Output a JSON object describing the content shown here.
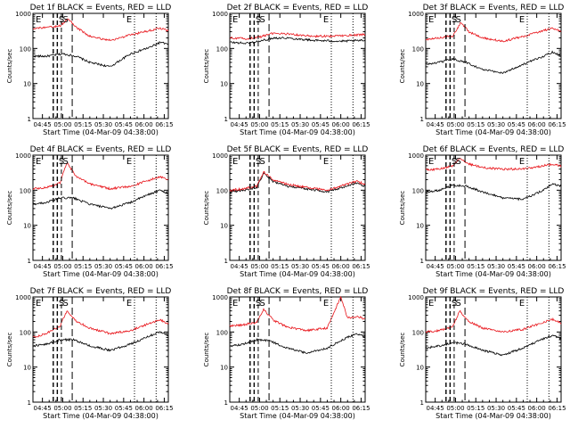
{
  "figure": {
    "x_axis_label": "Start Time (04-Mar-09 04:38:00)",
    "y_axis_label": "Counts/sec",
    "x_tick_labels": [
      "04:45",
      "05:00",
      "05:15",
      "05:30",
      "05:45",
      "06:00",
      "06:15"
    ],
    "y_tick_labels": [
      "1",
      "10",
      "100",
      "1000"
    ],
    "marker_labels": [
      "E",
      "S",
      "S",
      "E"
    ],
    "colors": {
      "events": "#000000",
      "lld": "#e8141a",
      "axes": "#000000"
    }
  },
  "chart_data": [
    {
      "type": "line",
      "title": "Det 1f BLACK = Events, RED = LLD",
      "xlabel": "Start Time (04-Mar-09 04:38:00)",
      "ylabel": "Counts/sec",
      "xlim": [
        "04:38",
        "06:18"
      ],
      "ylim": [
        1,
        1000
      ],
      "yscale": "log",
      "series": [
        {
          "name": "BLACK = Events",
          "points": [
            [
              "04:38",
              60
            ],
            [
              "04:48",
              60
            ],
            [
              "05:00",
              70
            ],
            [
              "05:10",
              60
            ],
            [
              "05:20",
              40
            ],
            [
              "05:35",
              30
            ],
            [
              "05:50",
              70
            ],
            [
              "06:05",
              110
            ],
            [
              "06:12",
              150
            ],
            [
              "06:18",
              130
            ]
          ]
        },
        {
          "name": "RED = LLD",
          "points": [
            [
              "04:38",
              380
            ],
            [
              "04:48",
              390
            ],
            [
              "04:58",
              440
            ],
            [
              "05:04",
              700
            ],
            [
              "05:10",
              400
            ],
            [
              "05:20",
              220
            ],
            [
              "05:35",
              170
            ],
            [
              "05:50",
              240
            ],
            [
              "06:05",
              330
            ],
            [
              "06:12",
              380
            ],
            [
              "06:18",
              320
            ]
          ]
        }
      ]
    },
    {
      "type": "line",
      "title": "Det 2f BLACK = Events, RED = LLD",
      "xlabel": "Start Time (04-Mar-09 04:38:00)",
      "ylabel": "Counts/sec",
      "xlim": [
        "04:38",
        "06:18"
      ],
      "ylim": [
        1,
        1000
      ],
      "yscale": "log",
      "series": [
        {
          "name": "BLACK = Events",
          "points": [
            [
              "04:38",
              150
            ],
            [
              "04:50",
              140
            ],
            [
              "05:00",
              160
            ],
            [
              "05:10",
              200
            ],
            [
              "05:20",
              200
            ],
            [
              "05:40",
              170
            ],
            [
              "06:00",
              160
            ],
            [
              "06:18",
              170
            ]
          ]
        },
        {
          "name": "RED = LLD",
          "points": [
            [
              "04:38",
              200
            ],
            [
              "04:50",
              190
            ],
            [
              "05:00",
              210
            ],
            [
              "05:10",
              270
            ],
            [
              "05:20",
              260
            ],
            [
              "05:40",
              220
            ],
            [
              "06:00",
              230
            ],
            [
              "06:18",
              250
            ]
          ]
        }
      ]
    },
    {
      "type": "line",
      "title": "Det 3f BLACK = Events, RED = LLD",
      "xlabel": "Start Time (04-Mar-09 04:38:00)",
      "ylabel": "Counts/sec",
      "xlim": [
        "04:38",
        "06:18"
      ],
      "ylim": [
        1,
        1000
      ],
      "yscale": "log",
      "series": [
        {
          "name": "BLACK = Events",
          "points": [
            [
              "04:38",
              35
            ],
            [
              "04:48",
              40
            ],
            [
              "04:58",
              50
            ],
            [
              "05:08",
              40
            ],
            [
              "05:20",
              25
            ],
            [
              "05:35",
              20
            ],
            [
              "05:50",
              35
            ],
            [
              "06:05",
              60
            ],
            [
              "06:12",
              80
            ],
            [
              "06:18",
              60
            ]
          ]
        },
        {
          "name": "RED = LLD",
          "points": [
            [
              "04:38",
              180
            ],
            [
              "04:48",
              200
            ],
            [
              "04:58",
              230
            ],
            [
              "05:04",
              550
            ],
            [
              "05:10",
              300
            ],
            [
              "05:20",
              200
            ],
            [
              "05:35",
              160
            ],
            [
              "05:50",
              220
            ],
            [
              "06:05",
              320
            ],
            [
              "06:12",
              380
            ],
            [
              "06:18",
              300
            ]
          ]
        }
      ]
    },
    {
      "type": "line",
      "title": "Det 4f BLACK = Events, RED = LLD",
      "xlabel": "Start Time (04-Mar-09 04:38:00)",
      "ylabel": "Counts/sec",
      "xlim": [
        "04:38",
        "06:18"
      ],
      "ylim": [
        1,
        1000
      ],
      "yscale": "log",
      "series": [
        {
          "name": "BLACK = Events",
          "points": [
            [
              "04:38",
              40
            ],
            [
              "04:48",
              45
            ],
            [
              "04:58",
              60
            ],
            [
              "05:08",
              60
            ],
            [
              "05:20",
              40
            ],
            [
              "05:35",
              30
            ],
            [
              "05:50",
              45
            ],
            [
              "06:05",
              80
            ],
            [
              "06:12",
              100
            ],
            [
              "06:18",
              80
            ]
          ]
        },
        {
          "name": "RED = LLD",
          "points": [
            [
              "04:38",
              110
            ],
            [
              "04:48",
              120
            ],
            [
              "04:58",
              160
            ],
            [
              "05:03",
              600
            ],
            [
              "05:10",
              250
            ],
            [
              "05:20",
              150
            ],
            [
              "05:35",
              110
            ],
            [
              "05:50",
              130
            ],
            [
              "06:05",
              200
            ],
            [
              "06:12",
              240
            ],
            [
              "06:18",
              200
            ]
          ]
        }
      ]
    },
    {
      "type": "line",
      "title": "Det 5f BLACK = Events, RED = LLD",
      "xlabel": "Start Time (04-Mar-09 04:38:00)",
      "ylabel": "Counts/sec",
      "xlim": [
        "04:38",
        "06:18"
      ],
      "ylim": [
        1,
        1000
      ],
      "yscale": "log",
      "series": [
        {
          "name": "BLACK = Events",
          "points": [
            [
              "04:38",
              90
            ],
            [
              "04:48",
              100
            ],
            [
              "04:58",
              120
            ],
            [
              "05:03",
              300
            ],
            [
              "05:10",
              180
            ],
            [
              "05:20",
              130
            ],
            [
              "05:35",
              110
            ],
            [
              "05:50",
              90
            ],
            [
              "06:05",
              130
            ],
            [
              "06:12",
              160
            ],
            [
              "06:18",
              130
            ]
          ]
        },
        {
          "name": "RED = LLD",
          "points": [
            [
              "04:38",
              100
            ],
            [
              "04:48",
              110
            ],
            [
              "04:58",
              130
            ],
            [
              "05:03",
              330
            ],
            [
              "05:10",
              200
            ],
            [
              "05:20",
              150
            ],
            [
              "05:35",
              120
            ],
            [
              "05:50",
              100
            ],
            [
              "06:05",
              150
            ],
            [
              "06:12",
              180
            ],
            [
              "06:18",
              150
            ]
          ]
        }
      ]
    },
    {
      "type": "line",
      "title": "Det 6f BLACK = Events, RED = LLD",
      "xlabel": "Start Time (04-Mar-09 04:38:00)",
      "ylabel": "Counts/sec",
      "xlim": [
        "04:38",
        "06:18"
      ],
      "ylim": [
        1,
        1000
      ],
      "yscale": "log",
      "series": [
        {
          "name": "BLACK = Events",
          "points": [
            [
              "04:38",
              90
            ],
            [
              "04:48",
              100
            ],
            [
              "04:58",
              140
            ],
            [
              "05:08",
              130
            ],
            [
              "05:20",
              90
            ],
            [
              "05:35",
              60
            ],
            [
              "05:50",
              55
            ],
            [
              "06:05",
              100
            ],
            [
              "06:12",
              150
            ],
            [
              "06:18",
              130
            ]
          ]
        },
        {
          "name": "RED = LLD",
          "points": [
            [
              "04:38",
              380
            ],
            [
              "04:48",
              400
            ],
            [
              "04:58",
              500
            ],
            [
              "05:03",
              800
            ],
            [
              "05:10",
              560
            ],
            [
              "05:20",
              440
            ],
            [
              "05:35",
              400
            ],
            [
              "05:50",
              400
            ],
            [
              "06:05",
              500
            ],
            [
              "06:12",
              560
            ],
            [
              "06:18",
              480
            ]
          ]
        }
      ]
    },
    {
      "type": "line",
      "title": "Det 7f BLACK = Events, RED = LLD",
      "xlabel": "Start Time (04-Mar-09 04:38:00)",
      "ylabel": "Counts/sec",
      "xlim": [
        "04:38",
        "06:18"
      ],
      "ylim": [
        1,
        1000
      ],
      "yscale": "log",
      "series": [
        {
          "name": "BLACK = Events",
          "points": [
            [
              "04:38",
              40
            ],
            [
              "04:48",
              45
            ],
            [
              "04:58",
              60
            ],
            [
              "05:08",
              60
            ],
            [
              "05:20",
              40
            ],
            [
              "05:35",
              30
            ],
            [
              "05:50",
              45
            ],
            [
              "06:05",
              80
            ],
            [
              "06:12",
              100
            ],
            [
              "06:18",
              80
            ]
          ]
        },
        {
          "name": "RED = LLD",
          "points": [
            [
              "04:38",
              70
            ],
            [
              "04:48",
              90
            ],
            [
              "04:58",
              150
            ],
            [
              "05:03",
              400
            ],
            [
              "05:10",
              200
            ],
            [
              "05:20",
              130
            ],
            [
              "05:35",
              90
            ],
            [
              "05:50",
              110
            ],
            [
              "06:05",
              180
            ],
            [
              "06:12",
              220
            ],
            [
              "06:18",
              170
            ]
          ]
        }
      ]
    },
    {
      "type": "line",
      "title": "Det 8f BLACK = Events, RED = LLD",
      "xlabel": "Start Time (04-Mar-09 04:38:00)",
      "ylabel": "Counts/sec",
      "xlim": [
        "04:38",
        "06:18"
      ],
      "ylim": [
        1,
        1000
      ],
      "yscale": "log",
      "series": [
        {
          "name": "BLACK = Events",
          "points": [
            [
              "04:38",
              40
            ],
            [
              "04:48",
              45
            ],
            [
              "04:58",
              60
            ],
            [
              "05:08",
              55
            ],
            [
              "05:20",
              35
            ],
            [
              "05:35",
              25
            ],
            [
              "05:50",
              35
            ],
            [
              "06:05",
              70
            ],
            [
              "06:12",
              90
            ],
            [
              "06:18",
              70
            ]
          ]
        },
        {
          "name": "RED = LLD",
          "points": [
            [
              "04:38",
              150
            ],
            [
              "04:48",
              160
            ],
            [
              "04:58",
              190
            ],
            [
              "05:03",
              450
            ],
            [
              "05:10",
              220
            ],
            [
              "05:20",
              140
            ],
            [
              "05:35",
              110
            ],
            [
              "05:50",
              130
            ],
            [
              "06:00",
              1000
            ],
            [
              "06:05",
              250
            ],
            [
              "06:12",
              280
            ],
            [
              "06:18",
              230
            ]
          ]
        }
      ]
    },
    {
      "type": "line",
      "title": "Det 9f BLACK = Events, RED = LLD",
      "xlabel": "Start Time (04-Mar-09 04:38:00)",
      "ylabel": "Counts/sec",
      "xlim": [
        "04:38",
        "06:18"
      ],
      "ylim": [
        1,
        1000
      ],
      "yscale": "log",
      "series": [
        {
          "name": "BLACK = Events",
          "points": [
            [
              "04:38",
              35
            ],
            [
              "04:48",
              40
            ],
            [
              "04:58",
              50
            ],
            [
              "05:08",
              45
            ],
            [
              "05:20",
              30
            ],
            [
              "05:35",
              22
            ],
            [
              "05:50",
              35
            ],
            [
              "06:05",
              65
            ],
            [
              "06:12",
              80
            ],
            [
              "06:18",
              65
            ]
          ]
        },
        {
          "name": "RED = LLD",
          "points": [
            [
              "04:38",
              100
            ],
            [
              "04:48",
              110
            ],
            [
              "04:58",
              140
            ],
            [
              "05:03",
              400
            ],
            [
              "05:10",
              200
            ],
            [
              "05:20",
              130
            ],
            [
              "05:35",
              100
            ],
            [
              "05:50",
              120
            ],
            [
              "06:05",
              190
            ],
            [
              "06:12",
              230
            ],
            [
              "06:18",
              180
            ]
          ]
        }
      ]
    }
  ]
}
